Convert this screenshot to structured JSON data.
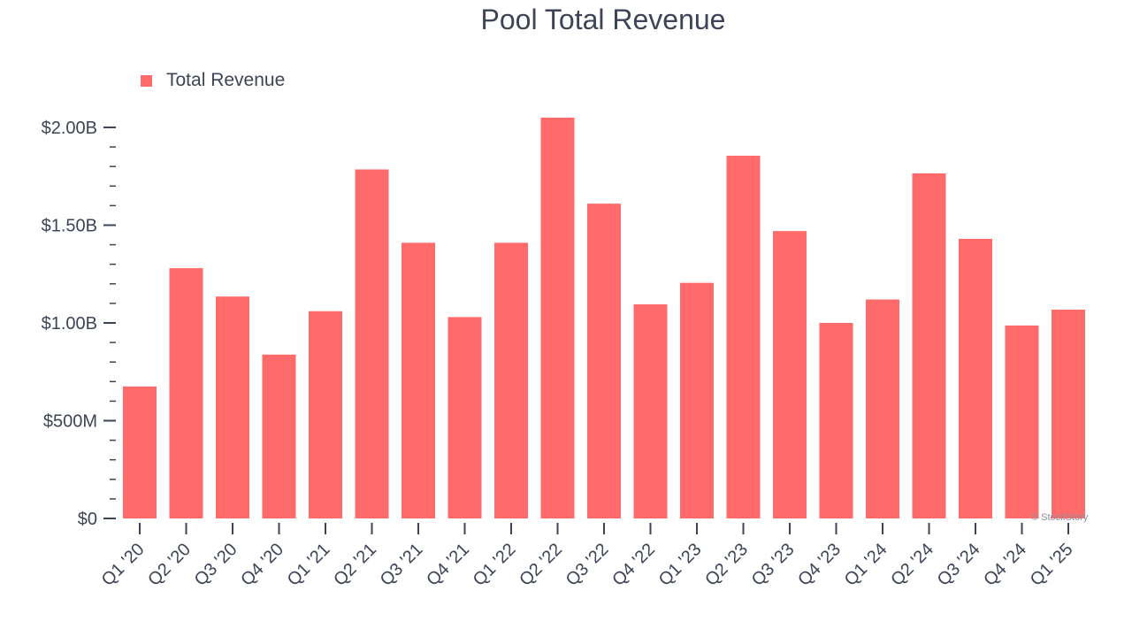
{
  "chart_data": {
    "type": "bar",
    "title": "Pool Total Revenue",
    "xlabel": "",
    "ylabel": "",
    "categories": [
      "Q1 '20",
      "Q2 '20",
      "Q3 '20",
      "Q4 '20",
      "Q1 '21",
      "Q2 '21",
      "Q3 '21",
      "Q4 '21",
      "Q1 '22",
      "Q2 '22",
      "Q3 '22",
      "Q4 '22",
      "Q1 '23",
      "Q2 '23",
      "Q3 '23",
      "Q4 '23",
      "Q1 '24",
      "Q2 '24",
      "Q3 '24",
      "Q4 '24",
      "Q1 '25"
    ],
    "series": [
      {
        "name": "Total Revenue",
        "color": "#ff6b6b",
        "values": [
          675,
          1280,
          1135,
          838,
          1060,
          1785,
          1410,
          1030,
          1410,
          2050,
          1610,
          1095,
          1205,
          1855,
          1470,
          1000,
          1120,
          1765,
          1430,
          987,
          1068
        ]
      }
    ],
    "yticks": [
      {
        "value": 0,
        "label": "$0"
      },
      {
        "value": 500,
        "label": "$500M"
      },
      {
        "value": 1000,
        "label": "$1.00B"
      },
      {
        "value": 1500,
        "label": "$1.50B"
      },
      {
        "value": 2000,
        "label": "$2.00B"
      }
    ],
    "ylim": [
      0,
      2000
    ],
    "yunit": "millions USD",
    "grid": false,
    "legend_position": "top-left"
  },
  "watermark": "© StockStory"
}
